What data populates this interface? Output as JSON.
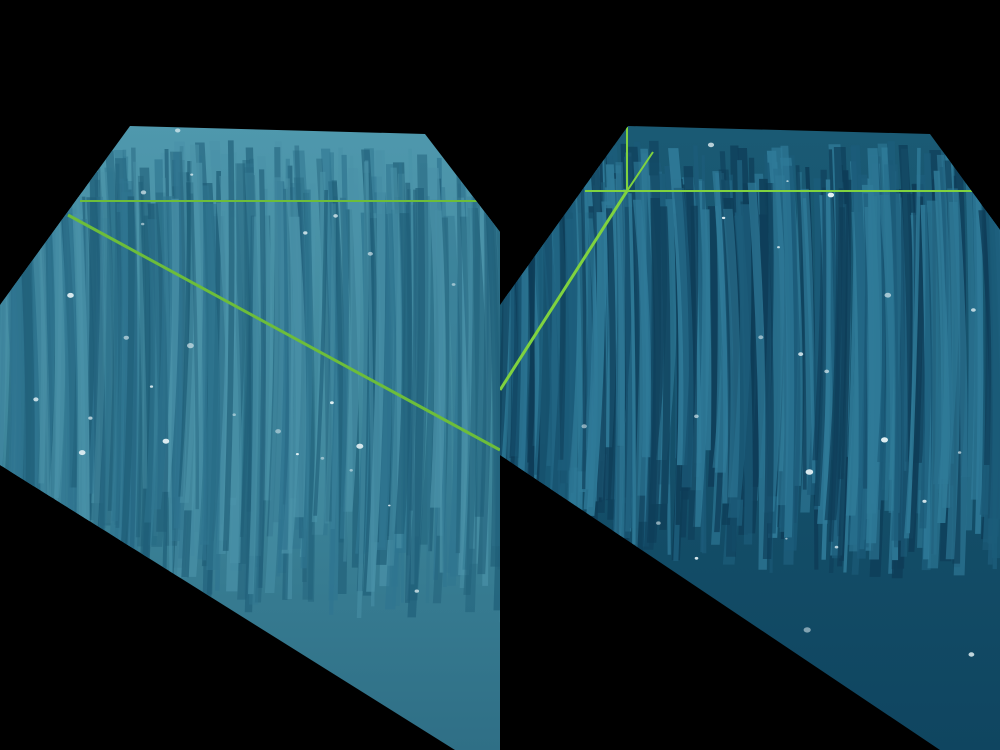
{
  "viewports": [
    {
      "id": "left",
      "colors": {
        "water_top": "#4f98ad",
        "water_mid": "#3c8499",
        "water_bottom": "#2f6f86",
        "strand_dark": "#1f5e78",
        "strand_mid": "#2f7590",
        "strand_light": "#4a92a8",
        "grid_line": "#6dbd3a"
      }
    },
    {
      "id": "right",
      "colors": {
        "water_top": "#1a5a74",
        "water_mid": "#144f69",
        "water_bottom": "#0f4560",
        "strand_dark": "#0e3d58",
        "strand_mid": "#1c5c7a",
        "strand_light": "#2f7a98",
        "grid_line": "#7fd23f"
      }
    }
  ],
  "particle_color": "#e8f4f7",
  "background_color": "#000000"
}
